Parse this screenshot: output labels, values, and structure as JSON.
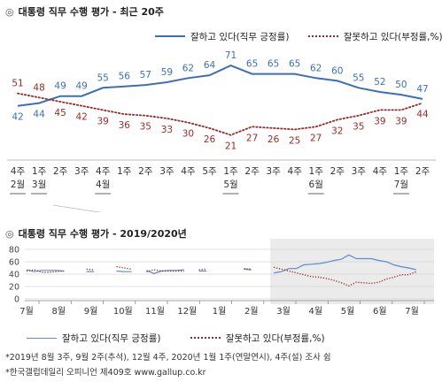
{
  "chart_data": [
    {
      "type": "line",
      "title": "대통령 직무 수행 평가 - 최근 20주",
      "x": [
        "4주\n2월",
        "1주\n3월",
        "2주",
        "3주",
        "4주\n4월",
        "1주",
        "2주",
        "3주",
        "4주",
        "5주",
        "1주\n5월",
        "2주",
        "3주",
        "4주",
        "1주\n6월",
        "2주",
        "3주",
        "4주",
        "1주\n7월",
        "2주"
      ],
      "series": [
        {
          "name": "잘하고 있다(직무 긍정률)",
          "color": "#3d6fb6",
          "style": "solid",
          "values": [
            42,
            44,
            49,
            49,
            55,
            56,
            57,
            59,
            62,
            64,
            71,
            65,
            65,
            65,
            62,
            60,
            55,
            52,
            50,
            47
          ]
        },
        {
          "name": "잘못하고 있다(부정률,%)",
          "color": "#9a2a2a",
          "style": "dotted",
          "values": [
            51,
            48,
            45,
            42,
            39,
            36,
            35,
            33,
            30,
            26,
            21,
            27,
            26,
            25,
            27,
            32,
            35,
            39,
            39,
            44
          ]
        }
      ],
      "ylim": [
        10,
        80
      ]
    },
    {
      "type": "line",
      "title": "대통령 직무 수행 평가 - 2019/2020년",
      "x_labels": [
        "7월",
        "8월",
        "9월",
        "10월",
        "11월",
        "12월",
        "1월",
        "2월",
        "3월",
        "4월",
        "5월",
        "6월",
        "7월"
      ],
      "y_ticks": [
        0,
        20,
        40,
        60,
        80
      ],
      "ylim": [
        0,
        80
      ],
      "highlight": "recent 20 weeks",
      "series": [
        {
          "name": "잘하고 있다(직무 긍정률)",
          "color": "#5b8bd0",
          "style": "solid",
          "values": [
            47,
            44,
            46,
            46,
            46,
            45,
            null,
            null,
            44,
            44,
            null,
            null,
            45,
            44,
            44,
            null,
            46,
            41,
            45,
            46,
            46,
            47,
            null,
            45,
            45,
            null,
            null,
            47,
            null,
            48,
            47,
            null,
            null,
            42,
            44,
            49,
            49,
            55,
            56,
            57,
            59,
            62,
            64,
            71,
            65,
            65,
            65,
            62,
            60,
            55,
            52,
            50,
            47
          ]
        },
        {
          "name": "잘못하고 있다(부정률,%)",
          "color": "#9a2a2a",
          "style": "dotted",
          "values": [
            45,
            47,
            43,
            43,
            44,
            45,
            null,
            null,
            48,
            47,
            null,
            null,
            52,
            50,
            48,
            null,
            44,
            47,
            45,
            45,
            45,
            45,
            null,
            47,
            48,
            null,
            null,
            51,
            null,
            49,
            48,
            null,
            null,
            51,
            48,
            45,
            42,
            39,
            36,
            35,
            33,
            30,
            26,
            21,
            27,
            26,
            25,
            27,
            32,
            35,
            39,
            39,
            44
          ]
        }
      ]
    }
  ],
  "legend": {
    "positive": "잘하고 있다(직무 긍정률)",
    "negative": "잘못하고 있다(부정률,%)"
  },
  "titles": {
    "top": "대통령 직무 수행 평가 - 최근 20주",
    "bottom": "대통령 직무 수행 평가 - 2019/2020년"
  },
  "footer": {
    "note": "*2019년 8월 3주, 9월 2주(추석), 12월 4주, 2020년 1월 1주(연말연시), 4주(설) 조사 쉼",
    "source": "*한국갤럽데일리 오피니언 제409호 www.gallup.co.kr"
  },
  "icons": {
    "title_marker": "◎"
  }
}
